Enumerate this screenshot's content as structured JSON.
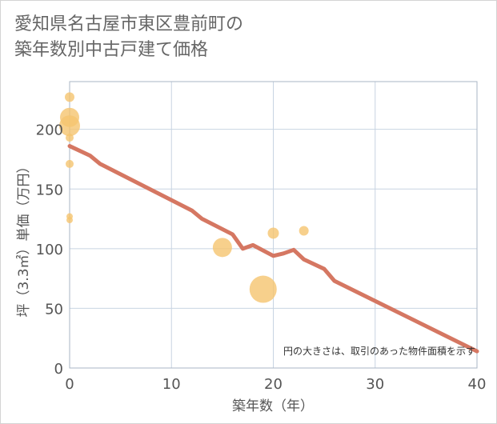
{
  "title": [
    "愛知県名古屋市東区豊前町の",
    "築年数別中古戸建て価格"
  ],
  "chart_data": {
    "type": "scatter",
    "xlabel": "築年数（年）",
    "ylabel": "坪（3.3㎡）単価（万円）",
    "xlim": [
      0,
      40
    ],
    "ylim": [
      0,
      240
    ],
    "xticks": [
      0,
      10,
      20,
      30,
      40
    ],
    "yticks": [
      0,
      50,
      100,
      150,
      200
    ],
    "grid": true,
    "note": "円の大きさは、取引のあった物件面積を示す",
    "colors": {
      "bubble": "#f5c46f",
      "line": "#d57762",
      "grid": "#c8d4e2"
    },
    "bubbles": [
      {
        "x": 0,
        "y": 227,
        "size": 6
      },
      {
        "x": 0,
        "y": 210,
        "size": 12
      },
      {
        "x": 0,
        "y": 203,
        "size": 13
      },
      {
        "x": 0,
        "y": 193,
        "size": 5
      },
      {
        "x": 0,
        "y": 171,
        "size": 5
      },
      {
        "x": 0,
        "y": 127,
        "size": 4
      },
      {
        "x": 0,
        "y": 124,
        "size": 4
      },
      {
        "x": 15,
        "y": 101,
        "size": 12
      },
      {
        "x": 19,
        "y": 66,
        "size": 17
      },
      {
        "x": 20,
        "y": 113,
        "size": 7
      },
      {
        "x": 23,
        "y": 115,
        "size": 6
      }
    ],
    "trend": {
      "x": [
        0,
        2,
        3,
        12,
        13,
        16,
        17,
        18,
        20,
        21,
        22,
        23,
        25,
        26,
        40
      ],
      "y": [
        186,
        178,
        171,
        132,
        125,
        112,
        100,
        103,
        94,
        96,
        99,
        91,
        83,
        73,
        14
      ]
    }
  }
}
